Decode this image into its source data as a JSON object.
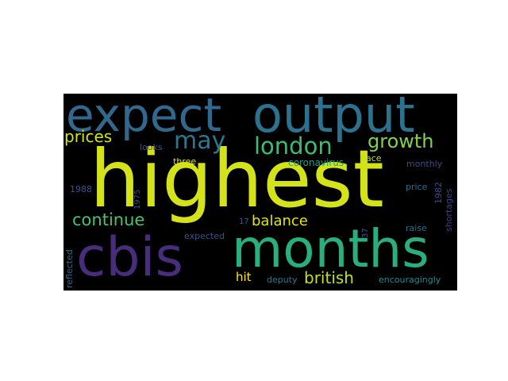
{
  "wordcloud": {
    "words": [
      {
        "text": "highest",
        "color": "#d4e21a"
      },
      {
        "text": "months",
        "color": "#29af7f"
      },
      {
        "text": "output",
        "color": "#2c728e"
      },
      {
        "text": "expect",
        "color": "#31688e"
      },
      {
        "text": "cbis",
        "color": "#472d7b"
      },
      {
        "text": "london",
        "color": "#3dbc74"
      },
      {
        "text": "may",
        "color": "#2a788e"
      },
      {
        "text": "growth",
        "color": "#7fd34e"
      },
      {
        "text": "prices",
        "color": "#d4e21a"
      },
      {
        "text": "continue",
        "color": "#4ac16d"
      },
      {
        "text": "balance",
        "color": "#e2e418"
      },
      {
        "text": "british",
        "color": "#c2df23"
      },
      {
        "text": "hit",
        "color": "#fde725"
      },
      {
        "text": "coronavirus",
        "color": "#1fa187"
      },
      {
        "text": "looks",
        "color": "#3b528b"
      },
      {
        "text": "three",
        "color": "#d8e219"
      },
      {
        "text": "pace",
        "color": "#bddf26"
      },
      {
        "text": "monthly",
        "color": "#3e4a89"
      },
      {
        "text": "1988",
        "color": "#3b528b"
      },
      {
        "text": "1975",
        "color": "#3e4989"
      },
      {
        "text": "price",
        "color": "#2d708e"
      },
      {
        "text": "1982",
        "color": "#3e4c8a"
      },
      {
        "text": "shortages",
        "color": "#433e85"
      },
      {
        "text": "17",
        "color": "#355f8d"
      },
      {
        "text": "37",
        "color": "#38598c"
      },
      {
        "text": "raise",
        "color": "#2e6e8e"
      },
      {
        "text": "expected",
        "color": "#3b528b"
      },
      {
        "text": "reflected",
        "color": "#31688e"
      },
      {
        "text": "deputy",
        "color": "#2a788e"
      },
      {
        "text": "encouragingly",
        "color": "#23898e"
      }
    ]
  }
}
